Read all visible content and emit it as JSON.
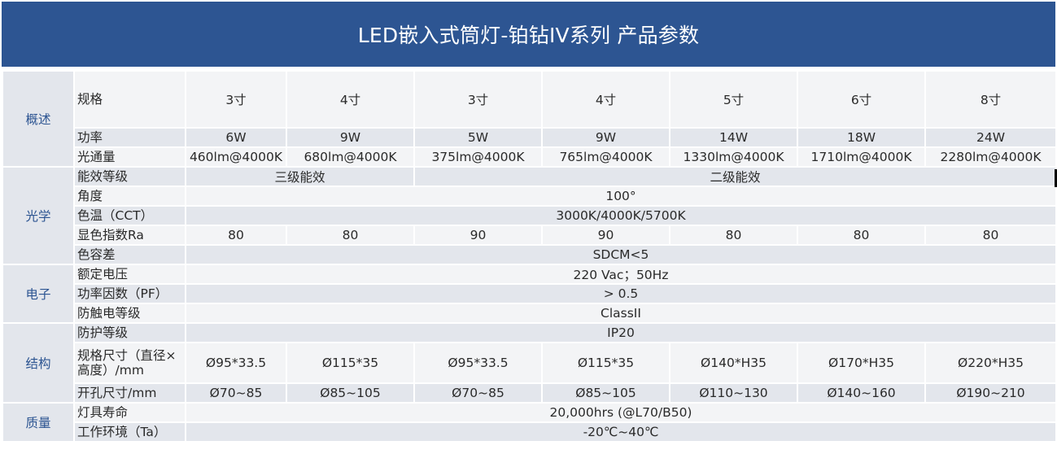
{
  "title": "LED嵌入式筒灯-铂钻IV系列 产品参数",
  "categories": {
    "overview": "概述",
    "optics": "光学",
    "electric": "电子",
    "structure": "结构",
    "quality": "质量"
  },
  "rows": {
    "spec": {
      "label": "规格",
      "values": [
        "3寸",
        "4寸",
        "3寸",
        "4寸",
        "5寸",
        "6寸",
        "8寸"
      ]
    },
    "power": {
      "label": "功率",
      "values": [
        "6W",
        "9W",
        "5W",
        "9W",
        "14W",
        "18W",
        "24W"
      ]
    },
    "flux": {
      "label": "光通量",
      "values": [
        "460lm@4000K",
        "680lm@4000K",
        "375lm@4000K",
        "765lm@4000K",
        "1330lm@4000K",
        "1710lm@4000K",
        "2280lm@4000K"
      ]
    },
    "efficiency": {
      "label": "能效等级",
      "group1": "三级能效",
      "group2": "二级能效"
    },
    "angle": {
      "label": "角度",
      "value": "100°"
    },
    "cct": {
      "label": "色温（CCT）",
      "value": "3000K/4000K/5700K"
    },
    "ra": {
      "label": "显色指数Ra",
      "values": [
        "80",
        "80",
        "90",
        "90",
        "80",
        "80",
        "80"
      ]
    },
    "sdcm": {
      "label": "色容差",
      "value": "SDCM<5"
    },
    "voltage": {
      "label": "额定电压",
      "value": "220 Vac；50Hz"
    },
    "pf": {
      "label": "功率因数（PF）",
      "value": "> 0.5"
    },
    "shock": {
      "label": "防触电等级",
      "value": "ClassII"
    },
    "ip": {
      "label": "防护等级",
      "value": "IP20"
    },
    "size": {
      "label": "规格尺寸（直径×高度）/mm",
      "values": [
        "Ø95*33.5",
        "Ø115*35",
        "Ø95*33.5",
        "Ø115*35",
        "Ø140*H35",
        "Ø170*H35",
        "Ø220*H35"
      ]
    },
    "cutout": {
      "label": "开孔尺寸/mm",
      "values": [
        "Ø70~85",
        "Ø85~105",
        "Ø70~85",
        "Ø85~105",
        "Ø110~130",
        "Ø140~160",
        "Ø190~210"
      ]
    },
    "life": {
      "label": "灯具寿命",
      "value": "20,000hrs  (@L70/B50)"
    },
    "env": {
      "label": "工作环境（Ta）",
      "value": "-20℃~40℃"
    }
  }
}
